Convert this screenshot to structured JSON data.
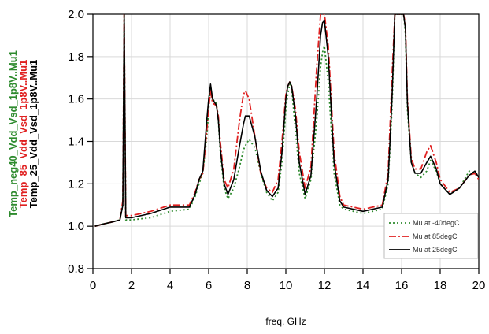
{
  "chart_data": {
    "type": "line",
    "xlabel": "freq, GHz",
    "ylabel_lines": [
      {
        "text": "Temp_neg40_Vdd_Vsd_1p8V..Mu1",
        "color": "#2e8b2e"
      },
      {
        "text": "Temp_85_Vdd_Vsd_1p8V..Mu1",
        "color": "#e02020"
      },
      {
        "text": "Temp_25_Vdd_Vsd_1p8V..Mu1",
        "color": "#000000"
      }
    ],
    "xlim": [
      0,
      20
    ],
    "ylim": [
      0.8,
      2.0
    ],
    "xticks": [
      "0",
      "2",
      "4",
      "6",
      "8",
      "10",
      "12",
      "14",
      "16",
      "18",
      "20"
    ],
    "yticks": [
      "0.8",
      "1.0",
      "1.2",
      "1.4",
      "1.6",
      "1.8",
      "2.0"
    ],
    "xtick_values": [
      0,
      2,
      4,
      6,
      8,
      10,
      12,
      14,
      16,
      18,
      20
    ],
    "ytick_values": [
      0.8,
      1.0,
      1.2,
      1.4,
      1.6,
      1.8,
      2.0
    ],
    "grid": true,
    "legend_position": "bottom-right",
    "series": [
      {
        "name": "Mu at -40degC",
        "color": "#2e8b2e",
        "dash": "2,3",
        "x": [
          0.1,
          0.5,
          1.0,
          1.4,
          1.55,
          1.62,
          1.7,
          2.0,
          3.0,
          4.0,
          5.0,
          5.3,
          5.5,
          5.7,
          5.9,
          6.0,
          6.1,
          6.2,
          6.4,
          6.5,
          6.6,
          6.8,
          7.0,
          7.3,
          7.6,
          7.8,
          7.9,
          8.1,
          8.4,
          8.7,
          9.0,
          9.3,
          9.6,
          9.8,
          10.0,
          10.1,
          10.2,
          10.3,
          10.5,
          10.7,
          11.0,
          11.3,
          11.6,
          11.8,
          11.9,
          12.0,
          12.2,
          12.5,
          12.8,
          13.0,
          14.0,
          15.0,
          15.3,
          15.5,
          15.65,
          15.7,
          16.1,
          16.2,
          16.3,
          16.5,
          16.7,
          17.0,
          17.3,
          17.5,
          17.8,
          18.0,
          18.5,
          19.0,
          19.5,
          19.8,
          20.0
        ],
        "y": [
          1.0,
          1.01,
          1.02,
          1.03,
          1.1,
          2.0,
          1.03,
          1.03,
          1.04,
          1.07,
          1.08,
          1.14,
          1.2,
          1.25,
          1.42,
          1.55,
          1.66,
          1.6,
          1.58,
          1.5,
          1.35,
          1.18,
          1.13,
          1.18,
          1.28,
          1.36,
          1.38,
          1.41,
          1.37,
          1.25,
          1.16,
          1.12,
          1.16,
          1.3,
          1.55,
          1.62,
          1.67,
          1.65,
          1.45,
          1.25,
          1.13,
          1.22,
          1.5,
          1.75,
          1.82,
          1.85,
          1.68,
          1.25,
          1.1,
          1.08,
          1.06,
          1.08,
          1.2,
          1.55,
          2.0,
          2.0,
          2.0,
          1.9,
          1.55,
          1.3,
          1.25,
          1.23,
          1.26,
          1.31,
          1.26,
          1.2,
          1.15,
          1.18,
          1.26,
          1.25,
          1.24
        ]
      },
      {
        "name": "Mu at 85degC",
        "color": "#e02020",
        "dash": "9,3,2,3",
        "x": [
          0.1,
          0.5,
          1.0,
          1.4,
          1.55,
          1.62,
          1.7,
          2.0,
          3.0,
          4.0,
          5.0,
          5.3,
          5.5,
          5.7,
          5.9,
          6.0,
          6.1,
          6.2,
          6.4,
          6.5,
          6.6,
          6.8,
          7.0,
          7.3,
          7.6,
          7.8,
          7.9,
          8.1,
          8.4,
          8.7,
          9.0,
          9.3,
          9.6,
          9.8,
          10.0,
          10.1,
          10.2,
          10.3,
          10.5,
          10.7,
          11.0,
          11.3,
          11.6,
          11.8,
          11.9,
          12.0,
          12.2,
          12.5,
          12.8,
          13.0,
          14.0,
          15.0,
          15.3,
          15.5,
          15.65,
          15.7,
          16.1,
          16.2,
          16.3,
          16.5,
          16.7,
          17.0,
          17.3,
          17.5,
          17.8,
          18.0,
          18.5,
          19.0,
          19.5,
          19.8,
          20.0
        ],
        "y": [
          1.0,
          1.01,
          1.02,
          1.03,
          1.12,
          2.0,
          1.05,
          1.05,
          1.07,
          1.1,
          1.1,
          1.16,
          1.22,
          1.25,
          1.45,
          1.56,
          1.64,
          1.58,
          1.57,
          1.52,
          1.4,
          1.22,
          1.18,
          1.27,
          1.5,
          1.62,
          1.64,
          1.6,
          1.42,
          1.25,
          1.18,
          1.16,
          1.22,
          1.4,
          1.62,
          1.66,
          1.68,
          1.66,
          1.55,
          1.35,
          1.18,
          1.28,
          1.75,
          2.0,
          2.0,
          2.0,
          1.85,
          1.35,
          1.14,
          1.1,
          1.08,
          1.1,
          1.25,
          1.7,
          2.0,
          2.0,
          2.0,
          1.95,
          1.6,
          1.32,
          1.27,
          1.27,
          1.35,
          1.38,
          1.3,
          1.22,
          1.16,
          1.18,
          1.24,
          1.25,
          1.22
        ]
      },
      {
        "name": "Mu at 25degC",
        "color": "#000000",
        "dash": "",
        "x": [
          0.1,
          0.5,
          1.0,
          1.4,
          1.55,
          1.62,
          1.7,
          2.0,
          3.0,
          4.0,
          5.0,
          5.3,
          5.5,
          5.7,
          5.9,
          6.0,
          6.1,
          6.2,
          6.4,
          6.5,
          6.6,
          6.8,
          7.0,
          7.3,
          7.6,
          7.8,
          7.9,
          8.1,
          8.4,
          8.7,
          9.0,
          9.3,
          9.6,
          9.8,
          10.0,
          10.1,
          10.2,
          10.3,
          10.5,
          10.7,
          11.0,
          11.3,
          11.6,
          11.8,
          11.9,
          12.0,
          12.2,
          12.5,
          12.8,
          13.0,
          14.0,
          15.0,
          15.3,
          15.5,
          15.65,
          15.7,
          16.1,
          16.2,
          16.3,
          16.5,
          16.7,
          17.0,
          17.3,
          17.5,
          17.8,
          18.0,
          18.5,
          19.0,
          19.5,
          19.8,
          20.0
        ],
        "y": [
          1.0,
          1.01,
          1.02,
          1.03,
          1.1,
          2.0,
          1.04,
          1.04,
          1.06,
          1.09,
          1.09,
          1.15,
          1.22,
          1.26,
          1.5,
          1.6,
          1.67,
          1.6,
          1.57,
          1.5,
          1.37,
          1.2,
          1.15,
          1.22,
          1.38,
          1.48,
          1.52,
          1.52,
          1.42,
          1.26,
          1.17,
          1.14,
          1.18,
          1.35,
          1.6,
          1.66,
          1.68,
          1.66,
          1.52,
          1.3,
          1.15,
          1.24,
          1.6,
          1.9,
          1.96,
          1.97,
          1.8,
          1.3,
          1.12,
          1.09,
          1.07,
          1.09,
          1.22,
          1.6,
          2.0,
          2.0,
          2.0,
          1.93,
          1.58,
          1.3,
          1.25,
          1.25,
          1.3,
          1.33,
          1.27,
          1.2,
          1.15,
          1.18,
          1.24,
          1.26,
          1.23
        ]
      }
    ]
  }
}
